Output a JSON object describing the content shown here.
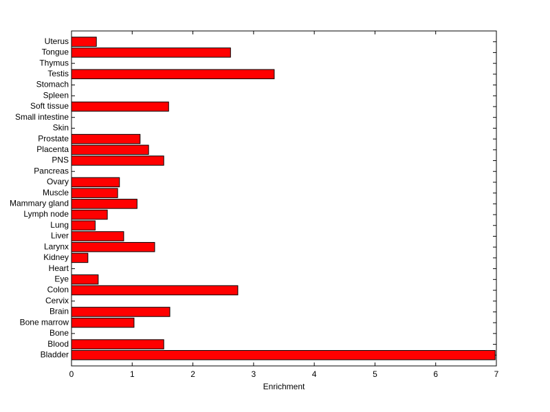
{
  "chart_data": {
    "type": "barh",
    "x_label": "Enrichment",
    "categories": [
      "Bladder",
      "Blood",
      "Bone",
      "Bone marrow",
      "Brain",
      "Cervix",
      "Colon",
      "Eye",
      "Heart",
      "Kidney",
      "Larynx",
      "Liver",
      "Lung",
      "Lymph node",
      "Mammary gland",
      "Muscle",
      "Ovary",
      "Pancreas",
      "PNS",
      "Placenta",
      "Prostate",
      "Skin",
      "Small intestine",
      "Soft tissue",
      "Spleen",
      "Stomach",
      "Testis",
      "Thymus",
      "Tongue",
      "Uterus"
    ],
    "values": [
      6.98,
      1.52,
      0,
      1.03,
      1.62,
      0,
      2.74,
      0.44,
      0,
      0.27,
      1.37,
      0.86,
      0.39,
      0.59,
      1.08,
      0.76,
      0.79,
      0,
      1.52,
      1.27,
      1.13,
      0,
      0,
      1.6,
      0,
      0,
      3.34,
      0,
      2.62,
      0.41
    ],
    "color": "#ff0000",
    "xlim": [
      0,
      7
    ],
    "xticks": [
      0,
      1,
      2,
      3,
      4,
      5,
      6,
      7
    ],
    "grid": false
  }
}
